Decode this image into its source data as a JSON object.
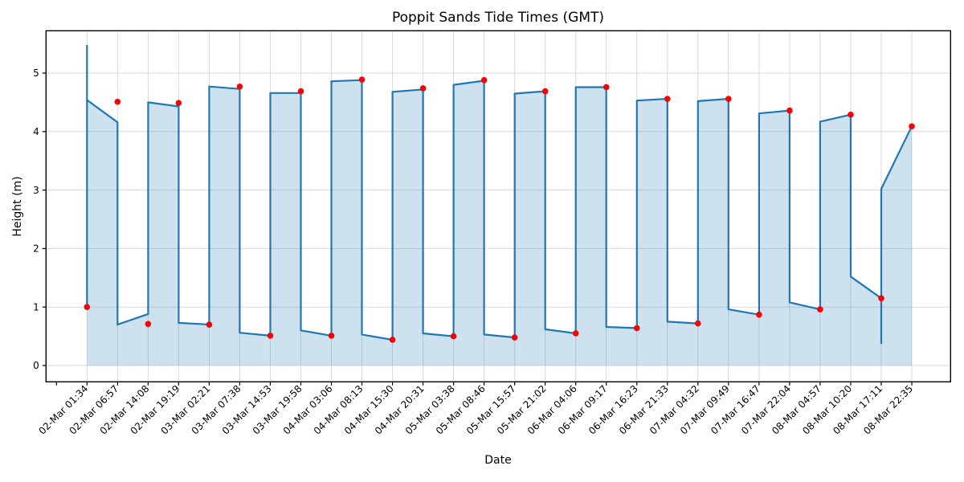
{
  "chart": {
    "title": "Poppit Sands Tide Times (GMT)",
    "xlabel": "Date",
    "ylabel": "Height (m)"
  },
  "chart_data": {
    "type": "line",
    "title": "Poppit Sands Tide Times (GMT)",
    "xlabel": "Date",
    "ylabel": "Height (m)",
    "ylim": [
      -0.28,
      5.73
    ],
    "grid": true,
    "legend": "none",
    "yticks": [
      0,
      1,
      2,
      3,
      4,
      5
    ],
    "categories": [
      "02-Mar 01:34",
      "02-Mar 06:57",
      "02-Mar 14:08",
      "02-Mar 19:19",
      "03-Mar 02:21",
      "03-Mar 07:38",
      "03-Mar 14:53",
      "03-Mar 19:58",
      "04-Mar 03:06",
      "04-Mar 08:13",
      "04-Mar 15:30",
      "04-Mar 20:31",
      "05-Mar 03:38",
      "05-Mar 08:46",
      "05-Mar 15:57",
      "05-Mar 21:02",
      "06-Mar 04:06",
      "06-Mar 09:17",
      "06-Mar 16:23",
      "06-Mar 21:33",
      "07-Mar 04:32",
      "07-Mar 09:49",
      "07-Mar 16:47",
      "07-Mar 22:04",
      "08-Mar 04:57",
      "08-Mar 10:20",
      "08-Mar 17:11",
      "08-Mar 22:35"
    ],
    "series": [
      {
        "name": "tide-height-points",
        "type": "scatter",
        "color": "#ff0000",
        "values": [
          1.0,
          4.51,
          0.71,
          4.49,
          0.7,
          4.77,
          0.51,
          4.69,
          0.51,
          4.89,
          0.44,
          4.74,
          0.5,
          4.88,
          0.48,
          4.69,
          0.55,
          4.76,
          0.64,
          4.56,
          0.72,
          4.56,
          0.87,
          4.36,
          0.96,
          4.29,
          1.15,
          4.09
        ]
      },
      {
        "name": "tide-curve",
        "type": "line",
        "color": "#1f77b4",
        "fill_below": true,
        "fill_opacity": 0.22,
        "vertices": [
          [
            0,
            1.0
          ],
          [
            0,
            5.47
          ],
          [
            0,
            4.54
          ],
          [
            1,
            4.16
          ],
          [
            1,
            0.7
          ],
          [
            2,
            0.88
          ],
          [
            2,
            4.5
          ],
          [
            3,
            4.43
          ],
          [
            3,
            0.73
          ],
          [
            4,
            0.7
          ],
          [
            4,
            4.77
          ],
          [
            5,
            4.73
          ],
          [
            5,
            0.56
          ],
          [
            6,
            0.51
          ],
          [
            6,
            4.66
          ],
          [
            7,
            4.66
          ],
          [
            7,
            0.6
          ],
          [
            8,
            0.51
          ],
          [
            8,
            4.86
          ],
          [
            9,
            4.88
          ],
          [
            9,
            0.53
          ],
          [
            10,
            0.44
          ],
          [
            10,
            4.68
          ],
          [
            11,
            4.72
          ],
          [
            11,
            0.55
          ],
          [
            12,
            0.5
          ],
          [
            12,
            4.8
          ],
          [
            13,
            4.87
          ],
          [
            13,
            0.53
          ],
          [
            14,
            0.48
          ],
          [
            14,
            4.65
          ],
          [
            15,
            4.69
          ],
          [
            15,
            0.62
          ],
          [
            16,
            0.55
          ],
          [
            16,
            4.76
          ],
          [
            17,
            4.76
          ],
          [
            17,
            0.66
          ],
          [
            18,
            0.64
          ],
          [
            18,
            4.53
          ],
          [
            19,
            4.56
          ],
          [
            19,
            0.75
          ],
          [
            20,
            0.72
          ],
          [
            20,
            4.52
          ],
          [
            21,
            4.56
          ],
          [
            21,
            0.96
          ],
          [
            22,
            0.87
          ],
          [
            22,
            4.31
          ],
          [
            23,
            4.36
          ],
          [
            23,
            1.08
          ],
          [
            24,
            0.96
          ],
          [
            24,
            4.17
          ],
          [
            25,
            4.29
          ],
          [
            25,
            1.52
          ],
          [
            26,
            1.15
          ],
          [
            26,
            0.38
          ],
          [
            26,
            3.02
          ],
          [
            27,
            4.09
          ]
        ]
      }
    ]
  },
  "colors": {
    "line": "#1f77b4",
    "fill": "#1f77b4",
    "points": "#ff0000",
    "grid": "#d9d9d9",
    "spine": "#000000",
    "background": "#ffffff"
  }
}
